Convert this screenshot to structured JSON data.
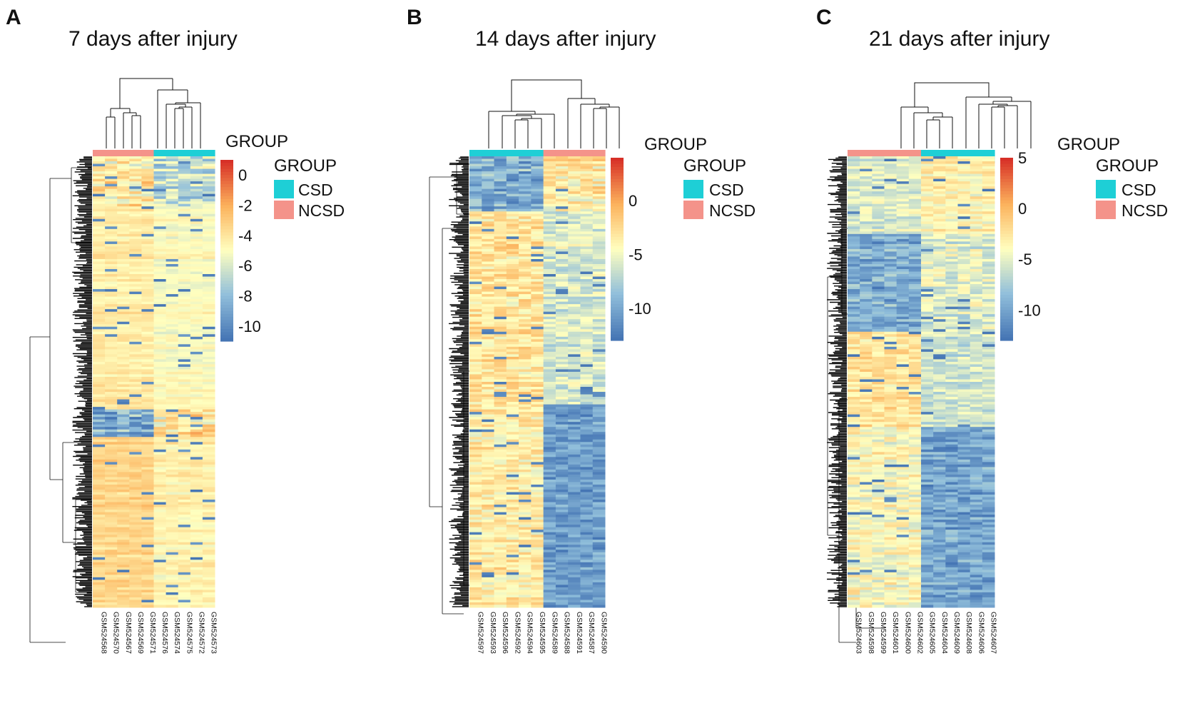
{
  "chart_data": [
    {
      "type": "heatmap",
      "panel": "A",
      "title": "7 days after injury",
      "column_annotation_title": "GROUP",
      "legend": {
        "title": "GROUP",
        "entries": [
          {
            "label": "CSD",
            "color": "#1ecfd6"
          },
          {
            "label": "NCSD",
            "color": "#f4938a"
          }
        ]
      },
      "colorbar": {
        "min": -11,
        "max": 1,
        "ticks": [
          "0",
          "-2",
          "-4",
          "-6",
          "-8",
          "-10"
        ],
        "tick_values": [
          0,
          -2,
          -4,
          -6,
          -8,
          -10
        ]
      },
      "samples": [
        {
          "id": "GSM524568",
          "group": "NCSD"
        },
        {
          "id": "GSM524570",
          "group": "NCSD"
        },
        {
          "id": "GSM524567",
          "group": "NCSD"
        },
        {
          "id": "GSM524569",
          "group": "NCSD"
        },
        {
          "id": "GSM524571",
          "group": "NCSD"
        },
        {
          "id": "GSM524576",
          "group": "CSD"
        },
        {
          "id": "GSM524574",
          "group": "CSD"
        },
        {
          "id": "GSM524575",
          "group": "CSD"
        },
        {
          "id": "GSM524572",
          "group": "CSD"
        },
        {
          "id": "GSM524573",
          "group": "CSD"
        }
      ],
      "pattern": [
        {
          "rows": [
            0.0,
            0.11
          ],
          "csd": -6.5,
          "ncsd": -4.2,
          "noise": 4.0
        },
        {
          "rows": [
            0.11,
            0.56
          ],
          "csd": -5.0,
          "ncsd": -4.2,
          "noise": 1.0
        },
        {
          "rows": [
            0.56,
            0.62
          ],
          "csd": -4.0,
          "ncsd": -9.0,
          "noise": 4.5
        },
        {
          "rows": [
            0.62,
            1.0
          ],
          "csd": -4.5,
          "ncsd": -3.4,
          "noise": 1.2
        }
      ]
    },
    {
      "type": "heatmap",
      "panel": "B",
      "title": "14 days after injury",
      "column_annotation_title": "GROUP",
      "legend": {
        "title": "GROUP",
        "entries": [
          {
            "label": "CSD",
            "color": "#1ecfd6"
          },
          {
            "label": "NCSD",
            "color": "#f4938a"
          }
        ]
      },
      "colorbar": {
        "min": -13,
        "max": 4,
        "ticks": [
          "0",
          "-5",
          "-10"
        ],
        "tick_values": [
          0,
          -5,
          -10
        ]
      },
      "samples": [
        {
          "id": "GSM524597",
          "group": "CSD"
        },
        {
          "id": "GSM524593",
          "group": "CSD"
        },
        {
          "id": "GSM524596",
          "group": "CSD"
        },
        {
          "id": "GSM524592",
          "group": "CSD"
        },
        {
          "id": "GSM524594",
          "group": "CSD"
        },
        {
          "id": "GSM524595",
          "group": "CSD"
        },
        {
          "id": "GSM524589",
          "group": "NCSD"
        },
        {
          "id": "GSM524588",
          "group": "NCSD"
        },
        {
          "id": "GSM524591",
          "group": "NCSD"
        },
        {
          "id": "GSM524587",
          "group": "NCSD"
        },
        {
          "id": "GSM524590",
          "group": "NCSD"
        }
      ],
      "pattern": [
        {
          "rows": [
            0.0,
            0.12
          ],
          "csd": -9.5,
          "ncsd": -3.5,
          "noise": 5.0
        },
        {
          "rows": [
            0.12,
            0.55
          ],
          "csd": -3.0,
          "ncsd": -6.0,
          "noise": 4.0
        },
        {
          "rows": [
            0.55,
            1.0
          ],
          "csd": -3.5,
          "ncsd": -10.5,
          "noise": 4.0
        }
      ]
    },
    {
      "type": "heatmap",
      "panel": "C",
      "title": "21 days after injury",
      "column_annotation_title": "GROUP",
      "legend": {
        "title": "GROUP",
        "entries": [
          {
            "label": "CSD",
            "color": "#1ecfd6"
          },
          {
            "label": "NCSD",
            "color": "#f4938a"
          }
        ]
      },
      "colorbar": {
        "min": -13,
        "max": 5,
        "ticks": [
          "5",
          "0",
          "-5",
          "-10"
        ],
        "tick_values": [
          5,
          0,
          -5,
          -10
        ]
      },
      "samples": [
        {
          "id": "GSM524603",
          "group": "NCSD"
        },
        {
          "id": "GSM524598",
          "group": "NCSD"
        },
        {
          "id": "GSM524599",
          "group": "NCSD"
        },
        {
          "id": "GSM524601",
          "group": "NCSD"
        },
        {
          "id": "GSM524600",
          "group": "NCSD"
        },
        {
          "id": "GSM524602",
          "group": "NCSD"
        },
        {
          "id": "GSM524605",
          "group": "CSD"
        },
        {
          "id": "GSM524604",
          "group": "CSD"
        },
        {
          "id": "GSM524609",
          "group": "CSD"
        },
        {
          "id": "GSM524608",
          "group": "CSD"
        },
        {
          "id": "GSM524606",
          "group": "CSD"
        },
        {
          "id": "GSM524607",
          "group": "CSD"
        }
      ],
      "pattern": [
        {
          "rows": [
            0.0,
            0.17
          ],
          "csd": -3.5,
          "ncsd": -5.5,
          "noise": 3.5
        },
        {
          "rows": [
            0.17,
            0.39
          ],
          "csd": -5.5,
          "ncsd": -9.5,
          "noise": 4.5
        },
        {
          "rows": [
            0.39,
            0.6
          ],
          "csd": -6.0,
          "ncsd": -2.5,
          "noise": 3.5
        },
        {
          "rows": [
            0.6,
            1.0
          ],
          "csd": -10.0,
          "ncsd": -4.0,
          "noise": 4.5
        }
      ]
    }
  ]
}
